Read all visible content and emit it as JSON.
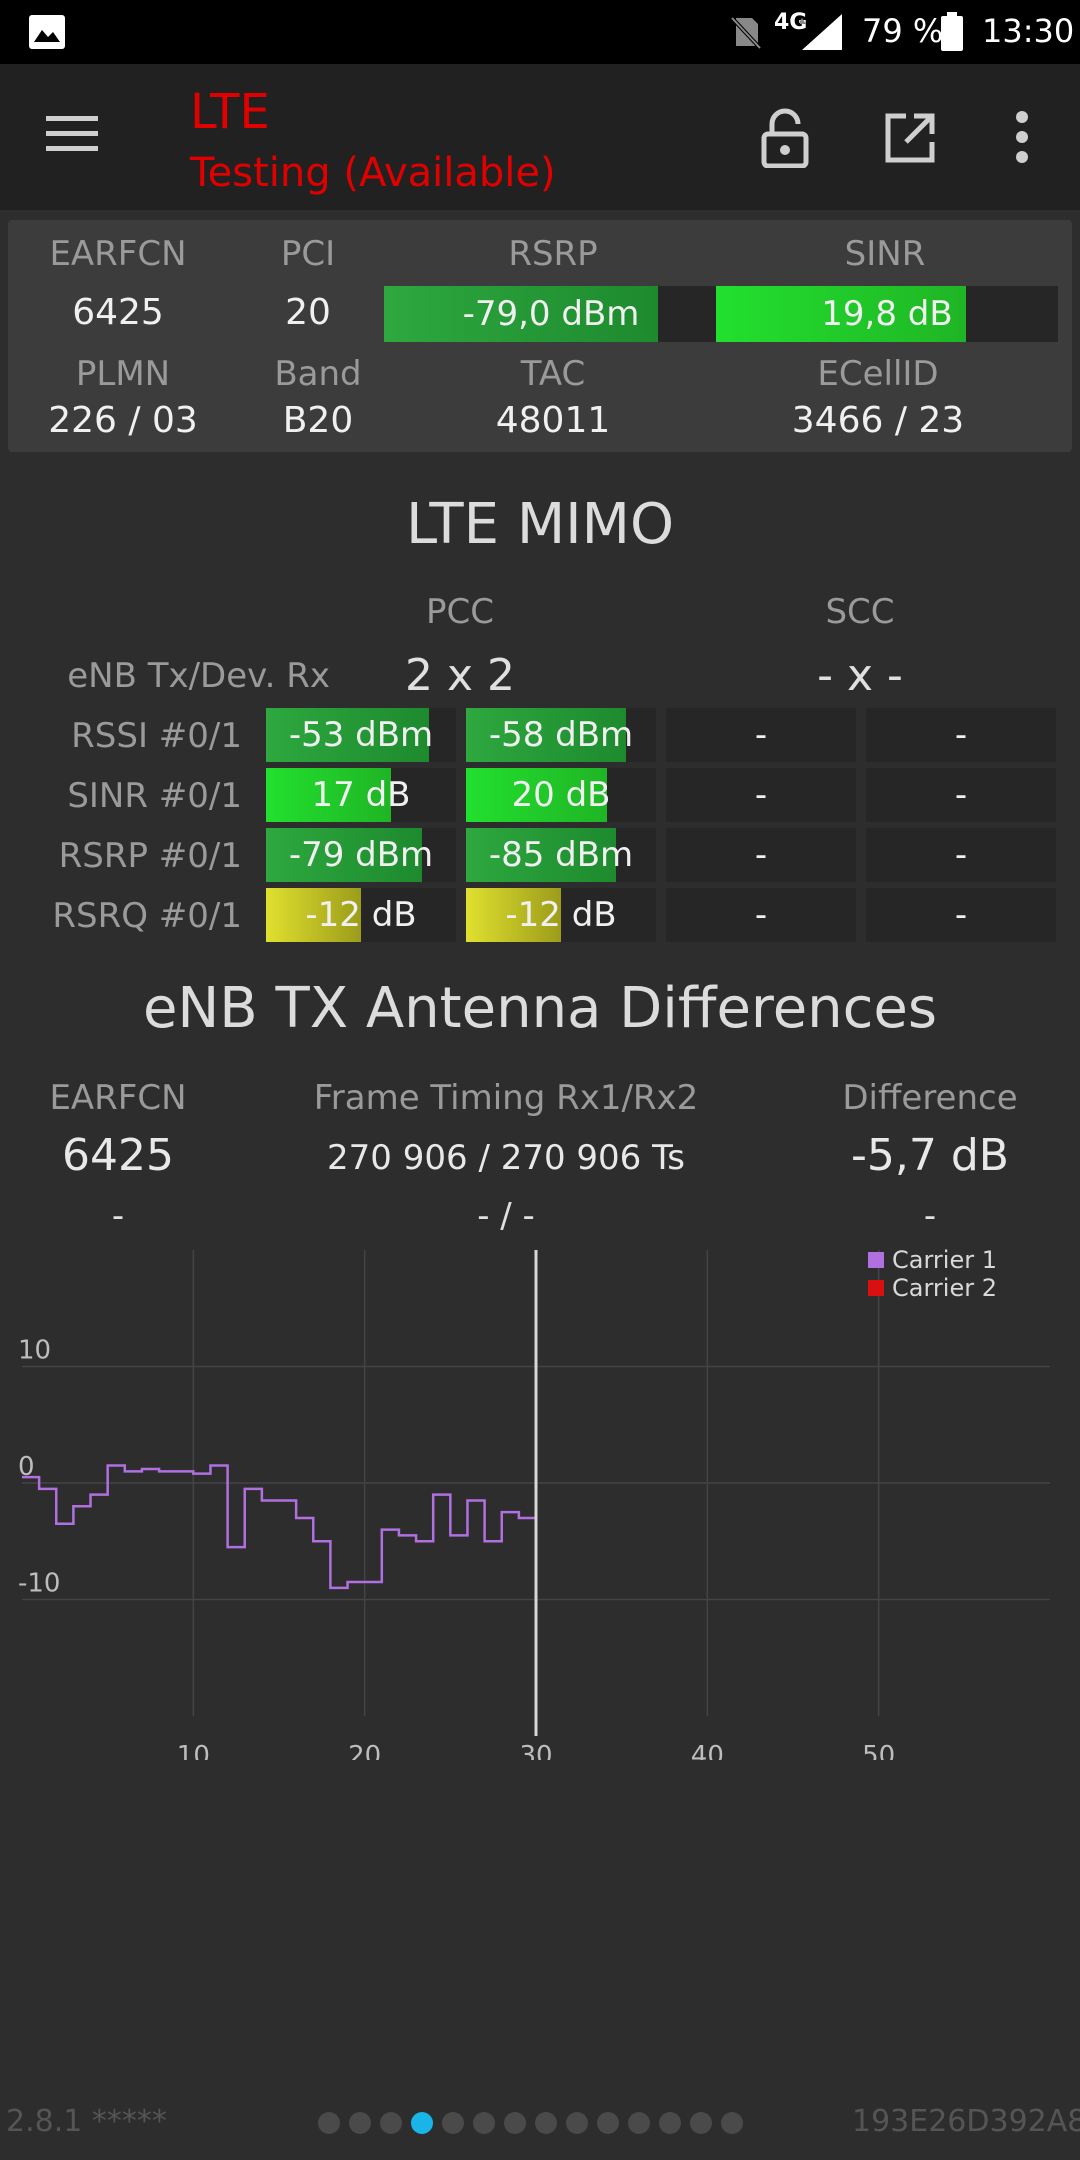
{
  "status_bar": {
    "network_type": "4G",
    "battery_percent": "79 %",
    "time": "13:30"
  },
  "app_bar": {
    "title": "LTE",
    "subtitle": "Testing (Available)",
    "title_color": "#e00000"
  },
  "cell_info": {
    "earfcn_label": "EARFCN",
    "earfcn": "6425",
    "pci_label": "PCI",
    "pci": "20",
    "rsrp_label": "RSRP",
    "rsrp": "-79,0 dBm",
    "rsrp_level": 0.82,
    "sinr_label": "SINR",
    "sinr": "19,8 dB",
    "sinr_level": 0.73,
    "plmn_label": "PLMN",
    "plmn": "226 / 03",
    "band_label": "Band",
    "band": "B20",
    "tac_label": "TAC",
    "tac": "48011",
    "ecellid_label": "ECellID",
    "ecellid": "3466 / 23"
  },
  "mimo": {
    "title": "LTE MIMO",
    "pcc_label": "PCC",
    "scc_label": "SCC",
    "config_label": "eNB Tx/Dev. Rx",
    "pcc_config": "2 x 2",
    "scc_config": "- x -",
    "rows": [
      {
        "label": "RSSI #0/1",
        "pcc0": "-53 dBm",
        "pcc1": "-58 dBm",
        "scc0": "-",
        "scc1": "-",
        "l0": 0.86,
        "l1": 0.84,
        "color": "green-dark"
      },
      {
        "label": "SINR #0/1",
        "pcc0": "17 dB",
        "pcc1": "20 dB",
        "scc0": "-",
        "scc1": "-",
        "l0": 0.66,
        "l1": 0.74,
        "color": "green-bright"
      },
      {
        "label": "RSRP #0/1",
        "pcc0": "-79 dBm",
        "pcc1": "-85 dBm",
        "scc0": "-",
        "scc1": "-",
        "l0": 0.82,
        "l1": 0.79,
        "color": "green-dark"
      },
      {
        "label": "RSRQ #0/1",
        "pcc0": "-12 dB",
        "pcc1": "-12 dB",
        "scc0": "-",
        "scc1": "-",
        "l0": 0.5,
        "l1": 0.5,
        "color": "yellow"
      }
    ]
  },
  "antenna": {
    "title": "eNB TX Antenna Differences",
    "earfcn_label": "EARFCN",
    "timing_label": "Frame Timing Rx1/Rx2",
    "difference_label": "Difference",
    "earfcn1": "6425",
    "timing1": "270 906 / 270 906 Ts",
    "difference1": "-5,7 dB",
    "earfcn2": "-",
    "timing2": "- / -",
    "difference2": "-"
  },
  "chart_data": {
    "type": "line",
    "xlim": [
      0,
      60
    ],
    "ylim": [
      -20,
      20
    ],
    "x_ticks": [
      "10",
      "20",
      "30",
      "40",
      "50"
    ],
    "y_ticks": [
      "10",
      "0",
      "-10"
    ],
    "cursor_x": 30,
    "legend_position": "top-right",
    "series": [
      {
        "name": "Carrier 1",
        "color": "#b070e0",
        "step": true,
        "x": [
          0,
          1,
          2,
          3,
          4,
          5,
          6,
          7,
          8,
          9,
          10,
          11,
          12,
          13,
          14,
          15,
          16,
          17,
          18,
          19,
          20,
          21,
          22,
          23,
          24,
          25,
          26,
          27,
          28,
          29
        ],
        "y": [
          0.5,
          -0.5,
          -3.5,
          -2,
          -1,
          1.5,
          1,
          1.2,
          1,
          1,
          0.8,
          1.5,
          -5.5,
          -0.5,
          -1.5,
          -1.5,
          -3,
          -5,
          -9,
          -8.5,
          -8.5,
          -4,
          -4.5,
          -5,
          -1,
          -4.5,
          -1.5,
          -5,
          -2.5,
          -3
        ]
      },
      {
        "name": "Carrier 2",
        "color": "#d81010",
        "x": [],
        "y": []
      }
    ]
  },
  "footer": {
    "version": "2.8.1 *****",
    "device_id": "193E26D392A8",
    "pages": 14,
    "active_page": 3
  }
}
